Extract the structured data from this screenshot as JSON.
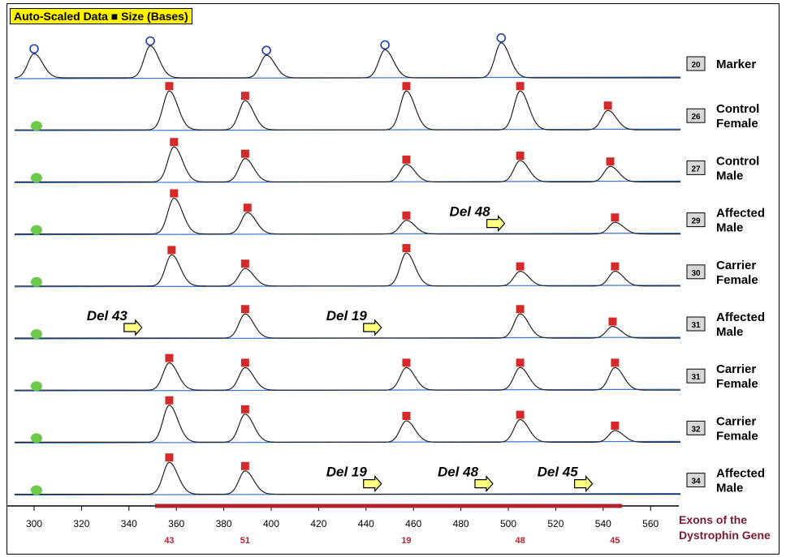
{
  "header": {
    "title": "Auto-Scaled Data ■ Size (Bases)"
  },
  "exon_axis": {
    "title_line1": "Exons of the",
    "title_line2": "Dystrophin Gene"
  },
  "colors": {
    "trace": "#222222",
    "baseline": "#3a74d0",
    "peak_marker": "#d42a2a",
    "start_marker": "#6cc84a",
    "exon_bar": "#b32433",
    "exon_text": "#7a1a30",
    "arrow_fill": "#ffff80"
  },
  "chart_data": {
    "type": "line",
    "xlabel": "",
    "xlim": [
      295,
      570
    ],
    "x_ticks": [
      300,
      320,
      340,
      360,
      380,
      400,
      420,
      440,
      460,
      480,
      500,
      520,
      540,
      560
    ],
    "exon_bar_range": [
      351,
      548
    ],
    "exon_labels": [
      {
        "x": 357,
        "label": "43"
      },
      {
        "x": 389,
        "label": "51"
      },
      {
        "x": 457,
        "label": "19"
      },
      {
        "x": 505,
        "label": "48"
      },
      {
        "x": 545,
        "label": "45"
      }
    ],
    "lanes": [
      {
        "id": "20",
        "line1": "Marker",
        "line2": "",
        "marker": "circle",
        "peaks": [
          {
            "x": 300,
            "h": 0.62
          },
          {
            "x": 349,
            "h": 0.82
          },
          {
            "x": 398,
            "h": 0.58
          },
          {
            "x": 448,
            "h": 0.72
          },
          {
            "x": 497,
            "h": 0.9
          }
        ],
        "deletions": []
      },
      {
        "id": "26",
        "line1": "Control",
        "line2": "Female",
        "marker": "square",
        "peaks": [
          {
            "x": 357,
            "h": 1.0
          },
          {
            "x": 389,
            "h": 0.75
          },
          {
            "x": 457,
            "h": 1.0
          },
          {
            "x": 505,
            "h": 1.0
          },
          {
            "x": 542,
            "h": 0.5
          }
        ],
        "deletions": []
      },
      {
        "id": "27",
        "line1": "Control",
        "line2": "Male",
        "marker": "square",
        "peaks": [
          {
            "x": 359,
            "h": 0.9
          },
          {
            "x": 389,
            "h": 0.6
          },
          {
            "x": 457,
            "h": 0.45
          },
          {
            "x": 505,
            "h": 0.55
          },
          {
            "x": 543,
            "h": 0.4
          }
        ],
        "deletions": []
      },
      {
        "id": "29",
        "line1": "Affected",
        "line2": "Male",
        "marker": "square",
        "peaks": [
          {
            "x": 359,
            "h": 0.92
          },
          {
            "x": 390,
            "h": 0.55
          },
          {
            "x": 457,
            "h": 0.35
          },
          {
            "x": 545,
            "h": 0.3
          }
        ],
        "deletions": [
          {
            "label": "Del 48",
            "x": 493
          }
        ]
      },
      {
        "id": "30",
        "line1": "Carrier",
        "line2": "Female",
        "marker": "square",
        "peaks": [
          {
            "x": 358,
            "h": 0.8
          },
          {
            "x": 389,
            "h": 0.45
          },
          {
            "x": 457,
            "h": 0.85
          },
          {
            "x": 505,
            "h": 0.38
          },
          {
            "x": 545,
            "h": 0.38
          }
        ],
        "deletions": []
      },
      {
        "id": "31",
        "line1": "Affected",
        "line2": "Male",
        "marker": "square",
        "peaks": [
          {
            "x": 389,
            "h": 0.62
          },
          {
            "x": 505,
            "h": 0.62
          },
          {
            "x": 544,
            "h": 0.3
          }
        ],
        "deletions": [
          {
            "label": "Del 43",
            "x": 340
          },
          {
            "label": "Del 19",
            "x": 441
          }
        ]
      },
      {
        "id": "31",
        "line1": "Carrier",
        "line2": "Female",
        "marker": "square",
        "peaks": [
          {
            "x": 357,
            "h": 0.7
          },
          {
            "x": 389,
            "h": 0.58
          },
          {
            "x": 457,
            "h": 0.58
          },
          {
            "x": 505,
            "h": 0.58
          },
          {
            "x": 545,
            "h": 0.58
          }
        ],
        "deletions": []
      },
      {
        "id": "32",
        "line1": "Carrier",
        "line2": "Female",
        "marker": "square",
        "peaks": [
          {
            "x": 357,
            "h": 0.95
          },
          {
            "x": 389,
            "h": 0.72
          },
          {
            "x": 457,
            "h": 0.55
          },
          {
            "x": 505,
            "h": 0.58
          },
          {
            "x": 545,
            "h": 0.3
          }
        ],
        "deletions": []
      },
      {
        "id": "34",
        "line1": "Affected",
        "line2": "Male",
        "marker": "square",
        "peaks": [
          {
            "x": 357,
            "h": 0.82
          },
          {
            "x": 389,
            "h": 0.6
          }
        ],
        "deletions": [
          {
            "label": "Del 19",
            "x": 441
          },
          {
            "label": "Del 48",
            "x": 488
          },
          {
            "label": "Del 45",
            "x": 530
          }
        ]
      }
    ]
  }
}
